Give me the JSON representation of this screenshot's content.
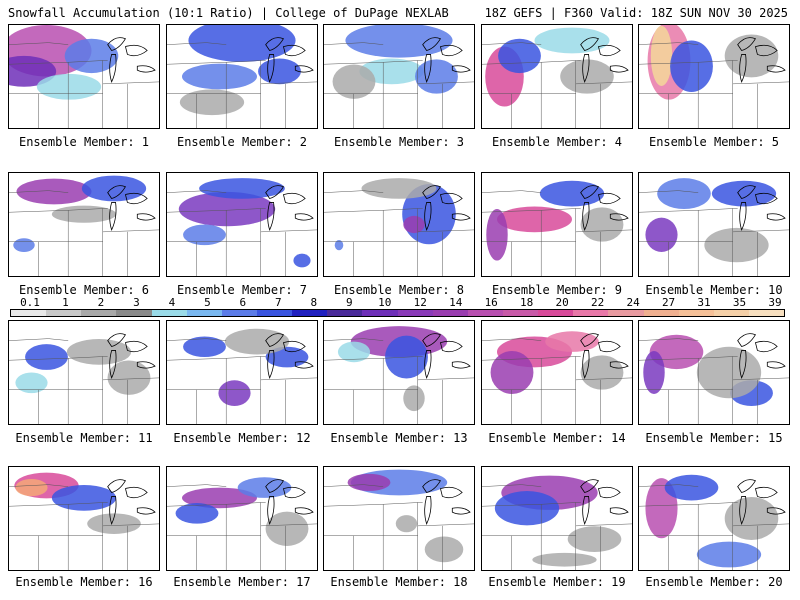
{
  "header": {
    "title_left": "Snowfall Accumulation (10:1 Ratio) | College of DuPage NEXLAB",
    "title_right": "18Z GEFS | F360 Valid: 18Z SUN NOV 30 2025"
  },
  "panels": [
    {
      "label": "Ensemble Member: 1",
      "snow": [
        [
          0.25,
          0.25,
          0.42,
          0.3,
          "#b84fb0"
        ],
        [
          0.1,
          0.45,
          0.3,
          0.18,
          "#6e2fb8"
        ],
        [
          0.55,
          0.3,
          0.25,
          0.2,
          "#5c7ce8"
        ],
        [
          0.4,
          0.6,
          0.3,
          0.15,
          "#9adbe8"
        ]
      ]
    },
    {
      "label": "Ensemble Member: 2",
      "snow": [
        [
          0.5,
          0.15,
          0.5,
          0.25,
          "#3a55e0"
        ],
        [
          0.35,
          0.5,
          0.35,
          0.15,
          "#5c7ce8"
        ],
        [
          0.75,
          0.45,
          0.2,
          0.15,
          "#3a55e0"
        ],
        [
          0.3,
          0.75,
          0.3,
          0.15,
          "#aaaaaa"
        ]
      ]
    },
    {
      "label": "Ensemble Member: 3",
      "snow": [
        [
          0.5,
          0.15,
          0.5,
          0.2,
          "#5c7ce8"
        ],
        [
          0.45,
          0.45,
          0.3,
          0.15,
          "#9adbe8"
        ],
        [
          0.75,
          0.5,
          0.2,
          0.2,
          "#5c7ce8"
        ],
        [
          0.2,
          0.55,
          0.2,
          0.2,
          "#aaaaaa"
        ]
      ]
    },
    {
      "label": "Ensemble Member: 4",
      "snow": [
        [
          0.15,
          0.5,
          0.18,
          0.35,
          "#d84a9a"
        ],
        [
          0.25,
          0.3,
          0.2,
          0.2,
          "#3a55e0"
        ],
        [
          0.6,
          0.15,
          0.35,
          0.15,
          "#9adbe8"
        ],
        [
          0.7,
          0.5,
          0.25,
          0.2,
          "#aaaaaa"
        ]
      ]
    },
    {
      "label": "Ensemble Member: 5",
      "snow": [
        [
          0.2,
          0.35,
          0.2,
          0.45,
          "#e878a8"
        ],
        [
          0.15,
          0.3,
          0.1,
          0.35,
          "#f5d79a"
        ],
        [
          0.35,
          0.4,
          0.2,
          0.3,
          "#3a55e0"
        ],
        [
          0.75,
          0.3,
          0.25,
          0.25,
          "#aaaaaa"
        ]
      ]
    },
    {
      "label": "Ensemble Member: 6",
      "snow": [
        [
          0.3,
          0.18,
          0.35,
          0.15,
          "#9a3db0"
        ],
        [
          0.7,
          0.15,
          0.3,
          0.15,
          "#3a55e0"
        ],
        [
          0.1,
          0.7,
          0.1,
          0.08,
          "#5c7ce8"
        ],
        [
          0.5,
          0.4,
          0.3,
          0.1,
          "#aaaaaa"
        ]
      ]
    },
    {
      "label": "Ensemble Member: 7",
      "snow": [
        [
          0.4,
          0.35,
          0.45,
          0.2,
          "#7a3ac0"
        ],
        [
          0.5,
          0.15,
          0.4,
          0.12,
          "#3a55e0"
        ],
        [
          0.25,
          0.6,
          0.2,
          0.12,
          "#5c7ce8"
        ],
        [
          0.9,
          0.85,
          0.08,
          0.08,
          "#3a55e0"
        ]
      ]
    },
    {
      "label": "Ensemble Member: 8",
      "snow": [
        [
          0.7,
          0.4,
          0.25,
          0.35,
          "#3a55e0"
        ],
        [
          0.6,
          0.5,
          0.1,
          0.1,
          "#9a3db0"
        ],
        [
          0.5,
          0.15,
          0.35,
          0.12,
          "#aaaaaa"
        ],
        [
          0.1,
          0.7,
          0.04,
          0.06,
          "#5c7ce8"
        ]
      ]
    },
    {
      "label": "Ensemble Member: 9",
      "snow": [
        [
          0.35,
          0.45,
          0.35,
          0.15,
          "#d84a9a"
        ],
        [
          0.1,
          0.6,
          0.1,
          0.3,
          "#9a3db0"
        ],
        [
          0.6,
          0.2,
          0.3,
          0.15,
          "#3a55e0"
        ],
        [
          0.8,
          0.5,
          0.2,
          0.2,
          "#aaaaaa"
        ]
      ]
    },
    {
      "label": "Ensemble Member: 10",
      "snow": [
        [
          0.15,
          0.6,
          0.15,
          0.2,
          "#7a3ac0"
        ],
        [
          0.3,
          0.2,
          0.25,
          0.18,
          "#5c7ce8"
        ],
        [
          0.7,
          0.2,
          0.3,
          0.15,
          "#3a55e0"
        ],
        [
          0.65,
          0.7,
          0.3,
          0.2,
          "#aaaaaa"
        ]
      ]
    },
    {
      "label": "Ensemble Member: 11",
      "snow": [
        [
          0.25,
          0.35,
          0.2,
          0.15,
          "#3a55e0"
        ],
        [
          0.6,
          0.3,
          0.3,
          0.15,
          "#aaaaaa"
        ],
        [
          0.15,
          0.6,
          0.15,
          0.12,
          "#9adbe8"
        ],
        [
          0.8,
          0.55,
          0.2,
          0.2,
          "#aaaaaa"
        ]
      ]
    },
    {
      "label": "Ensemble Member: 12",
      "snow": [
        [
          0.45,
          0.7,
          0.15,
          0.15,
          "#7a3ac0"
        ],
        [
          0.25,
          0.25,
          0.2,
          0.12,
          "#3a55e0"
        ],
        [
          0.8,
          0.35,
          0.2,
          0.12,
          "#3a55e0"
        ],
        [
          0.6,
          0.2,
          0.3,
          0.15,
          "#aaaaaa"
        ]
      ]
    },
    {
      "label": "Ensemble Member: 13",
      "snow": [
        [
          0.5,
          0.2,
          0.45,
          0.18,
          "#9a3db0"
        ],
        [
          0.55,
          0.35,
          0.2,
          0.25,
          "#3a55e0"
        ],
        [
          0.2,
          0.3,
          0.15,
          0.12,
          "#9adbe8"
        ],
        [
          0.6,
          0.75,
          0.1,
          0.15,
          "#aaaaaa"
        ]
      ]
    },
    {
      "label": "Ensemble Member: 14",
      "snow": [
        [
          0.35,
          0.3,
          0.35,
          0.18,
          "#d84a9a"
        ],
        [
          0.2,
          0.5,
          0.2,
          0.25,
          "#9a3db0"
        ],
        [
          0.6,
          0.2,
          0.25,
          0.12,
          "#e878a8"
        ],
        [
          0.8,
          0.5,
          0.2,
          0.2,
          "#aaaaaa"
        ]
      ]
    },
    {
      "label": "Ensemble Member: 15",
      "snow": [
        [
          0.25,
          0.3,
          0.25,
          0.2,
          "#b84fb0"
        ],
        [
          0.1,
          0.5,
          0.1,
          0.25,
          "#7a3ac0"
        ],
        [
          0.75,
          0.7,
          0.2,
          0.15,
          "#3a55e0"
        ],
        [
          0.6,
          0.5,
          0.3,
          0.3,
          "#aaaaaa"
        ]
      ]
    },
    {
      "label": "Ensemble Member: 16",
      "snow": [
        [
          0.25,
          0.18,
          0.3,
          0.15,
          "#d84a9a"
        ],
        [
          0.15,
          0.2,
          0.15,
          0.1,
          "#f5a878"
        ],
        [
          0.5,
          0.3,
          0.3,
          0.15,
          "#3a55e0"
        ],
        [
          0.7,
          0.55,
          0.25,
          0.12,
          "#aaaaaa"
        ]
      ]
    },
    {
      "label": "Ensemble Member: 17",
      "snow": [
        [
          0.35,
          0.3,
          0.35,
          0.12,
          "#9a3db0"
        ],
        [
          0.2,
          0.45,
          0.2,
          0.12,
          "#3a55e0"
        ],
        [
          0.65,
          0.2,
          0.25,
          0.12,
          "#5c7ce8"
        ],
        [
          0.8,
          0.6,
          0.2,
          0.2,
          "#aaaaaa"
        ]
      ]
    },
    {
      "label": "Ensemble Member: 18",
      "snow": [
        [
          0.5,
          0.15,
          0.45,
          0.15,
          "#5c7ce8"
        ],
        [
          0.3,
          0.15,
          0.2,
          0.1,
          "#9a3db0"
        ],
        [
          0.8,
          0.8,
          0.18,
          0.15,
          "#aaaaaa"
        ],
        [
          0.55,
          0.55,
          0.1,
          0.1,
          "#aaaaaa"
        ]
      ]
    },
    {
      "label": "Ensemble Member: 19",
      "snow": [
        [
          0.45,
          0.25,
          0.45,
          0.2,
          "#9a3db0"
        ],
        [
          0.3,
          0.4,
          0.3,
          0.2,
          "#3a55e0"
        ],
        [
          0.75,
          0.7,
          0.25,
          0.15,
          "#aaaaaa"
        ],
        [
          0.55,
          0.9,
          0.3,
          0.08,
          "#aaaaaa"
        ]
      ]
    },
    {
      "label": "Ensemble Member: 20",
      "snow": [
        [
          0.15,
          0.4,
          0.15,
          0.35,
          "#b84fb0"
        ],
        [
          0.35,
          0.2,
          0.25,
          0.15,
          "#3a55e0"
        ],
        [
          0.6,
          0.85,
          0.3,
          0.15,
          "#5c7ce8"
        ],
        [
          0.75,
          0.5,
          0.25,
          0.25,
          "#aaaaaa"
        ]
      ]
    }
  ],
  "colorbar": {
    "ticks": [
      "0.1",
      "1",
      "2",
      "3",
      "4",
      "5",
      "6",
      "7",
      "8",
      "9",
      "10",
      "12",
      "14",
      "16",
      "18",
      "20",
      "22",
      "24",
      "27",
      "31",
      "35",
      "39"
    ],
    "colors": [
      "#e8e8e8",
      "#c8c8c8",
      "#a8a8a8",
      "#8a8a8a",
      "#9adbe8",
      "#7ab8f0",
      "#5c7ce8",
      "#3a55e0",
      "#2020c0",
      "#4a2a9a",
      "#6e2fb8",
      "#8a3ab8",
      "#9a3db0",
      "#b84fb0",
      "#c85aa8",
      "#d84a9a",
      "#e878a8",
      "#e89aa0",
      "#f0b090",
      "#f5c098",
      "#f5d0a8",
      "#f8e0c0"
    ]
  }
}
